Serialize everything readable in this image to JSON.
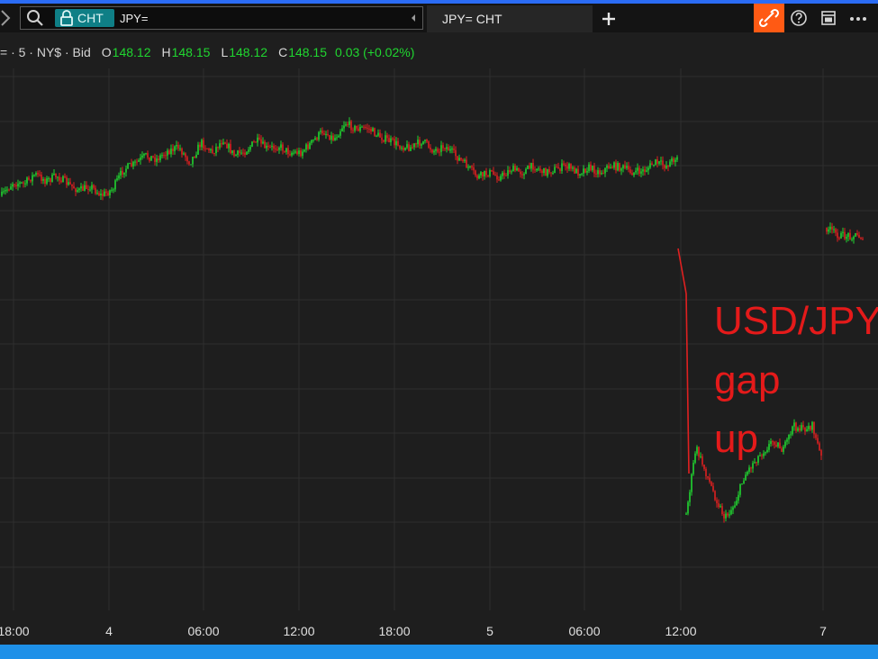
{
  "toolbar": {
    "app_badge": "CHT",
    "ric_value": "JPY=",
    "tab_label": "JPY= CHT",
    "add_tab_label": "+"
  },
  "infobar": {
    "interval": "= · 5 · NY$ · Bid",
    "open_key": "O",
    "open": "148.12",
    "high_key": "H",
    "high": "148.15",
    "low_key": "L",
    "low": "148.12",
    "close_key": "C",
    "close": "148.15",
    "change": "0.03 (+0.02%)"
  },
  "colors": {
    "up": "#20d630",
    "down": "#e02020",
    "annotation": "#e41a1a",
    "accent": "#ff5a14",
    "badge": "#0f7f86"
  },
  "icons": [
    "search-icon",
    "lock-icon",
    "collapse-icon",
    "add-icon",
    "link-icon",
    "help-icon",
    "layout-icon",
    "more-icon"
  ],
  "chart_data": {
    "type": "line",
    "x_tick_labels": [
      "18:00",
      "4",
      "06:00",
      "12:00",
      "18:00",
      "5",
      "06:00",
      "12:00",
      "7"
    ],
    "grid": true,
    "annotation_lines": [
      "USD/JPY",
      "gap",
      "up"
    ],
    "series": [
      {
        "values": [
          0.44,
          0.36,
          0.37,
          0.31,
          0.35,
          0.32,
          0.37,
          0.41,
          0.38,
          0.44,
          0.4,
          0.28,
          0.25,
          0.2,
          0.22,
          0.17,
          0.15,
          0.24,
          0.12,
          0.18,
          0.1,
          0.2,
          0.17,
          0.11,
          0.16,
          0.14,
          0.18,
          0.18,
          0.12,
          0.05,
          0.1,
          0.0,
          0.04,
          0.03,
          0.08,
          0.11,
          0.14,
          0.15,
          0.11,
          0.17,
          0.14,
          0.2,
          0.26,
          0.33,
          0.3,
          0.33,
          0.28,
          0.3,
          0.26,
          0.3,
          0.28,
          0.26,
          0.3,
          0.27,
          0.3,
          0.26,
          0.27,
          0.3,
          0.29,
          0.24,
          0.26,
          0.2
        ]
      },
      {
        "values": [
          0.85,
          0.66,
          0.73,
          0.8,
          0.86,
          0.82,
          0.74,
          0.7,
          0.67,
          0.64,
          0.67,
          0.6,
          0.61,
          0.6,
          0.7
        ]
      },
      {
        "values": [
          0.2,
          0.26,
          0.31,
          0.3,
          0.3,
          0.32
        ]
      }
    ]
  }
}
